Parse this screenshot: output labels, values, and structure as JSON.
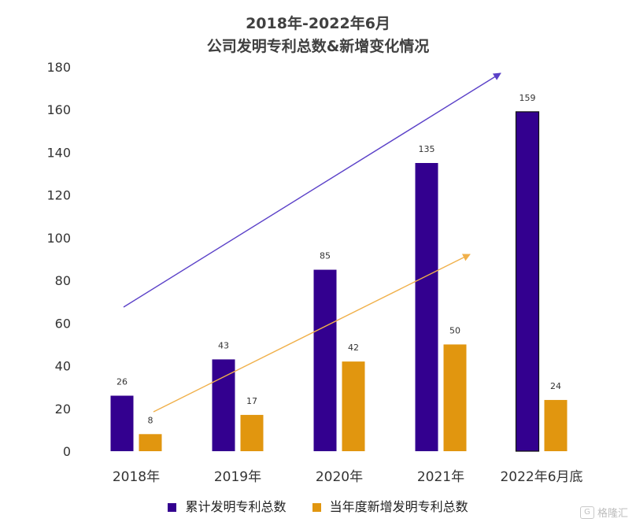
{
  "chart_data": {
    "type": "bar",
    "title": "2018年-2022年6月",
    "subtitle": "公司发明专利总数&新增变化情况",
    "categories": [
      "2018年",
      "2019年",
      "2020年",
      "2021年",
      "2022年6月底"
    ],
    "series": [
      {
        "name": "累计发明专利总数",
        "values": [
          26,
          43,
          85,
          135,
          159
        ]
      },
      {
        "name": "当年度新增发明专利总数",
        "values": [
          8,
          17,
          42,
          50,
          24
        ]
      }
    ],
    "yticks": [
      0,
      20,
      40,
      60,
      80,
      100,
      120,
      140,
      160,
      180
    ],
    "ylim": [
      0,
      180
    ],
    "xlabel": "",
    "ylabel": "",
    "grid": false,
    "legend_position": "bottom",
    "colors": {
      "series1": "#33008f",
      "series2": "#e1960f",
      "category_highlight_2021": "#111111",
      "category_highlight_2022": "#e1960f",
      "axis_tick": "#333333"
    },
    "trend_arrows": [
      {
        "series": "累计发明专利总数",
        "color": "#5b41c8"
      },
      {
        "series": "当年度新增发明专利总数",
        "color": "#f0b04a"
      }
    ]
  },
  "watermark": {
    "text": "格隆汇",
    "icon": "g-logo-icon"
  }
}
